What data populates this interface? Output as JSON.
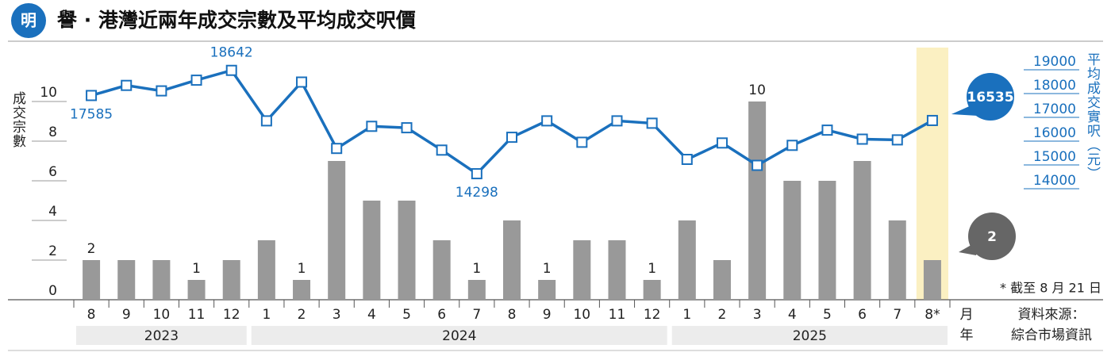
{
  "chart_data": {
    "type": "bar-line",
    "title": "譽 · 港灣近兩年成交宗數及平均成交呎價",
    "logo": "明",
    "categories": [
      "8",
      "9",
      "10",
      "11",
      "12",
      "1",
      "2",
      "3",
      "4",
      "5",
      "6",
      "7",
      "8",
      "9",
      "10",
      "11",
      "12",
      "1",
      "2",
      "3",
      "4",
      "5",
      "6",
      "7",
      "8*"
    ],
    "year_groups": [
      {
        "label": "2023",
        "count": 5
      },
      {
        "label": "2024",
        "count": 12
      },
      {
        "label": "2025",
        "count": 8
      }
    ],
    "x_label_month": "月",
    "x_label_year": "年",
    "series": [
      {
        "name": "成交宗數",
        "type": "bar",
        "color": "#999999",
        "values": [
          2,
          2,
          2,
          1,
          2,
          3,
          1,
          7,
          5,
          5,
          3,
          1,
          4,
          1,
          3,
          3,
          1,
          4,
          2,
          10,
          6,
          6,
          7,
          4,
          2
        ],
        "value_labels": [
          "2",
          null,
          null,
          "1",
          null,
          null,
          "1",
          null,
          null,
          null,
          null,
          "1",
          null,
          "1",
          null,
          null,
          "1",
          null,
          null,
          "10",
          null,
          null,
          null,
          null,
          "2"
        ]
      },
      {
        "name": "平均成交實呎（元）",
        "type": "line",
        "axis": "y2",
        "color": "#1a70bd",
        "values": [
          17585,
          18010,
          17780,
          18230,
          18642,
          16520,
          18150,
          15360,
          16290,
          16230,
          15290,
          14298,
          15830,
          16520,
          15620,
          16520,
          16420,
          14900,
          15590,
          14650,
          15490,
          16130,
          15750,
          15720,
          16535
        ],
        "value_labels": [
          "17585",
          null,
          null,
          null,
          "18642",
          null,
          null,
          null,
          null,
          null,
          null,
          "14298",
          null,
          null,
          null,
          null,
          null,
          null,
          null,
          null,
          null,
          null,
          null,
          null,
          "16535"
        ]
      }
    ],
    "highlight": 24,
    "ylim": [
      0,
      12
    ],
    "yticks": [
      0,
      2,
      4,
      6,
      8,
      10
    ],
    "y2lim": [
      9000,
      19000
    ],
    "y2ticks": [
      14000,
      15000,
      16000,
      17000,
      18000,
      19000
    ],
    "footnote": "* 截至 8 月 21 日",
    "source_label": "資料來源：",
    "source": "綜合市場資訊"
  }
}
